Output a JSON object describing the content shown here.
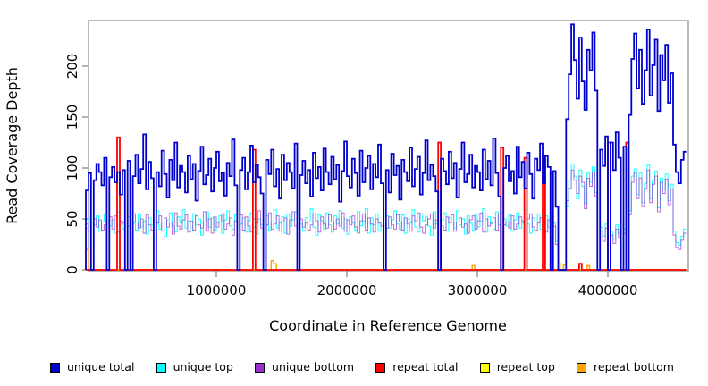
{
  "chart_data": {
    "type": "line",
    "line_style": "step",
    "title": "",
    "xlabel": "Coordinate in Reference Genome",
    "ylabel": "Read Coverage Depth",
    "xlim": [
      0,
      4600000
    ],
    "ylim": [
      0,
      245
    ],
    "grid": false,
    "frame_color": "#888888",
    "tick_color": "#808080",
    "legend_position": "bottom",
    "x_start": 0,
    "x_step": 20000,
    "n_bins": 230,
    "xticks": [
      {
        "value": 1000000,
        "label": "1000000"
      },
      {
        "value": 2000000,
        "label": "2000000"
      },
      {
        "value": 3000000,
        "label": "3000000"
      },
      {
        "value": 4000000,
        "label": "4000000"
      }
    ],
    "yticks": [
      {
        "value": 0,
        "label": "0"
      },
      {
        "value": 50,
        "label": "50"
      },
      {
        "value": 100,
        "label": "100"
      },
      {
        "value": 150,
        "label": "150"
      },
      {
        "value": 200,
        "label": "200"
      }
    ],
    "legend": [
      {
        "label": "unique total",
        "color": "#0000CD"
      },
      {
        "label": "unique top",
        "color": "#00FFFF"
      },
      {
        "label": "unique bottom",
        "color": "#9932CC"
      },
      {
        "label": "repeat total",
        "color": "#FF0000"
      },
      {
        "label": "repeat top",
        "color": "#FFFF00"
      },
      {
        "label": "repeat bottom",
        "color": "#FFA500"
      }
    ],
    "series": [
      {
        "name": "repeat top",
        "color": "#FFFF00",
        "width": 1,
        "opacity": 1,
        "base": 0,
        "spikes": []
      },
      {
        "name": "repeat bottom",
        "color": "#FFA500",
        "width": 1.5,
        "opacity": 1,
        "base": 0,
        "spikes": [
          [
            0,
            20
          ],
          [
            1420000,
            9
          ],
          [
            1440000,
            6
          ],
          [
            2960000,
            4
          ],
          [
            3620000,
            6
          ],
          [
            3660000,
            5
          ],
          [
            3840000,
            4
          ]
        ]
      },
      {
        "name": "unique top",
        "color": "#00FFFF",
        "width": 1,
        "opacity": 0.9,
        "values": [
          41,
          50,
          0,
          44,
          53,
          38,
          47,
          55,
          0,
          43,
          49,
          36,
          57,
          45,
          40,
          0,
          52,
          0,
          46,
          39,
          54,
          42,
          48,
          35,
          51,
          44,
          0,
          58,
          40,
          47,
          33,
          49,
          56,
          43,
          37,
          52,
          46,
          59,
          41,
          48,
          38,
          55,
          44,
          50,
          34,
          47,
          57,
          42,
          51,
          39,
          46,
          53,
          36,
          49,
          58,
          43,
          40,
          54,
          0,
          45,
          51,
          37,
          48,
          56,
          42,
          35,
          50,
          44,
          0,
          53,
          39,
          47,
          59,
          41,
          46,
          52,
          36,
          55,
          43,
          49,
          57,
          0,
          45,
          38,
          51,
          47,
          60,
          42,
          34,
          54,
          48,
          40,
          56,
          44,
          37,
          53,
          45,
          58,
          41,
          50,
          35,
          52,
          46,
          39,
          57,
          43,
          48,
          60,
          36,
          51,
          44,
          55,
          38,
          47,
          0,
          53,
          41,
          49,
          58,
          45,
          40,
          54,
          36,
          50,
          46,
          59,
          42,
          37,
          55,
          48,
          52,
          43,
          34,
          57,
          45,
          0,
          49,
          56,
          38,
          51,
          47,
          41,
          58,
          44,
          50,
          35,
          53,
          46,
          39,
          55,
          42,
          48,
          60,
          37,
          52,
          45,
          40,
          57,
          44,
          0,
          50,
          43,
          54,
          38,
          49,
          56,
          41,
          46,
          59,
          45,
          36,
          51,
          47,
          55,
          40,
          48,
          53,
          42,
          0,
          46,
          28,
          0,
          0,
          0,
          62,
          88,
          104,
          92,
          70,
          98,
          82,
          65,
          95,
          86,
          101,
          76,
          0,
          42,
          33,
          45,
          0,
          38,
          30,
          44,
          36,
          0,
          40,
          0,
          58,
          92,
          99,
          74,
          95,
          66,
          85,
          103,
          70,
          88,
          97,
          61,
          90,
          79,
          94,
          68,
          84,
          38,
          27,
          24,
          33,
          40
        ]
      },
      {
        "name": "unique bottom",
        "color": "#9932CC",
        "width": 1,
        "opacity": 0.7,
        "values": [
          45,
          38,
          0,
          50,
          42,
          49,
          39,
          44,
          0,
          52,
          40,
          53,
          37,
          48,
          46,
          0,
          43,
          0,
          55,
          47,
          41,
          50,
          36,
          54,
          44,
          39,
          0,
          46,
          53,
          38,
          51,
          42,
          47,
          35,
          56,
          43,
          40,
          49,
          54,
          37,
          48,
          39,
          53,
          44,
          41,
          57,
          38,
          50,
          36,
          52,
          42,
          47,
          55,
          40,
          45,
          51,
          34,
          48,
          0,
          54,
          39,
          52,
          43,
          37,
          50,
          46,
          58,
          41,
          0,
          44,
          56,
          40,
          45,
          53,
          38,
          47,
          51,
          35,
          49,
          57,
          43,
          0,
          50,
          42,
          46,
          39,
          44,
          55,
          48,
          37,
          52,
          45,
          41,
          54,
          47,
          40,
          50,
          43,
          56,
          38,
          49,
          44,
          53,
          42,
          36,
          48,
          55,
          39,
          51,
          45,
          37,
          50,
          46,
          43,
          0,
          41,
          52,
          44,
          40,
          54,
          47,
          39,
          51,
          45,
          38,
          53,
          48,
          56,
          42,
          36,
          44,
          50,
          55,
          41,
          49,
          0,
          43,
          39,
          52,
          46,
          54,
          38,
          47,
          51,
          42,
          45,
          36,
          49,
          53,
          40,
          48,
          56,
          37,
          50,
          43,
          46,
          51,
          39,
          55,
          0,
          44,
          47,
          41,
          53,
          40,
          45,
          52,
          48,
          38,
          50,
          55,
          42,
          39,
          46,
          51,
          44,
          37,
          49,
          0,
          43,
          25,
          0,
          0,
          0,
          68,
          80,
          98,
          88,
          75,
          92,
          86,
          60,
          90,
          82,
          96,
          72,
          0,
          38,
          28,
          41,
          0,
          34,
          26,
          40,
          32,
          0,
          36,
          0,
          54,
          86,
          95,
          70,
          90,
          62,
          80,
          98,
          66,
          84,
          92,
          57,
          86,
          75,
          89,
          64,
          79,
          34,
          22,
          20,
          29,
          36
        ]
      },
      {
        "name": "repeat total",
        "color": "#FF0000",
        "width": 1.8,
        "opacity": 1,
        "base": 0,
        "spikes": [
          [
            240000,
            130
          ],
          [
            1280000,
            118
          ],
          [
            2700000,
            125
          ],
          [
            3180000,
            120
          ],
          [
            3360000,
            110
          ],
          [
            3500000,
            112
          ],
          [
            3560000,
            95
          ],
          [
            3780000,
            6
          ],
          [
            4000000,
            125
          ],
          [
            4140000,
            125
          ]
        ]
      },
      {
        "name": "unique total",
        "color": "#0000CD",
        "width": 1.8,
        "opacity": 1,
        "values": [
          78,
          95,
          0,
          88,
          104,
          96,
          83,
          110,
          0,
          91,
          101,
          86,
          96,
          74,
          98,
          0,
          107,
          0,
          92,
          113,
          85,
          99,
          133,
          79,
          106,
          90,
          0,
          96,
          82,
          117,
          94,
          71,
          108,
          88,
          125,
          81,
          102,
          96,
          76,
          112,
          89,
          104,
          68,
          97,
          121,
          84,
          93,
          109,
          77,
          100,
          116,
          87,
          95,
          73,
          105,
          92,
          128,
          83,
          0,
          98,
          110,
          79,
          96,
          122,
          86,
          103,
          91,
          75,
          0,
          108,
          94,
          118,
          82,
          99,
          70,
          113,
          88,
          105,
          96,
          80,
          124,
          0,
          93,
          107,
          85,
          98,
          72,
          115,
          90,
          101,
          78,
          119,
          96,
          84,
          111,
          89,
          103,
          67,
          97,
          126,
          92,
          81,
          109,
          95,
          73,
          117,
          86,
          100,
          112,
          79,
          104,
          91,
          123,
          85,
          0,
          98,
          76,
          114,
          93,
          102,
          69,
          108,
          96,
          87,
          120,
          82,
          99,
          111,
          74,
          95,
          127,
          88,
          103,
          92,
          77,
          0,
          109,
          97,
          84,
          116,
          90,
          105,
          71,
          99,
          125,
          86,
          94,
          113,
          81,
          102,
          96,
          78,
          118,
          89,
          107,
          83,
          129,
          95,
          72,
          0,
          100,
          112,
          87,
          97,
          75,
          121,
          91,
          106,
          80,
          115,
          94,
          70,
          109,
          98,
          124,
          85,
          112,
          101,
          0,
          97,
          62,
          0,
          0,
          0,
          148,
          192,
          241,
          206,
          168,
          228,
          185,
          157,
          216,
          196,
          233,
          176,
          0,
          118,
          102,
          131,
          0,
          125,
          98,
          135,
          110,
          0,
          121,
          0,
          152,
          207,
          232,
          178,
          216,
          163,
          196,
          236,
          171,
          201,
          226,
          156,
          211,
          186,
          221,
          164,
          193,
          123,
          96,
          85,
          108,
          116
        ]
      }
    ]
  }
}
